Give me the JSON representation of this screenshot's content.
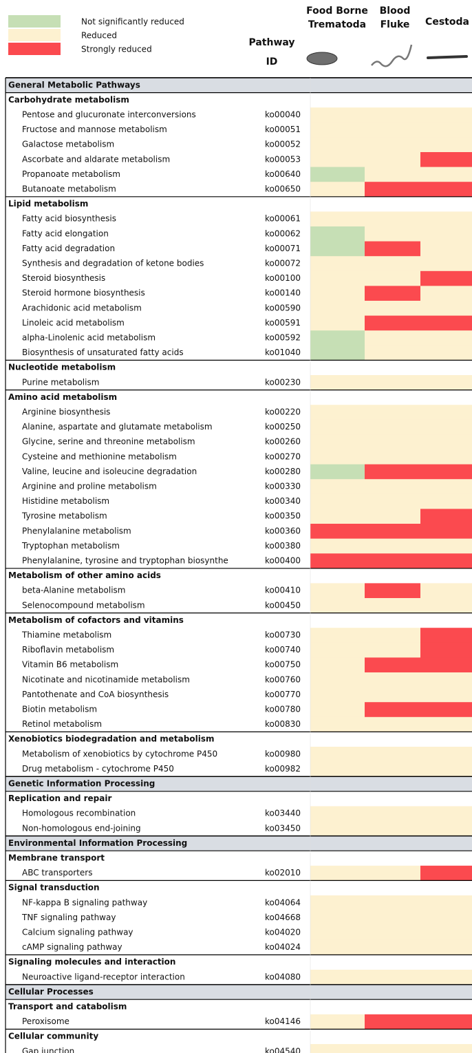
{
  "legend": [
    {
      "label": "Not significantly reduced",
      "color": "#c6dfb5"
    },
    {
      "label": "Reduced",
      "color": "#fdf1d0"
    },
    {
      "label": "Strongly reduced",
      "color": "#fb4a4f"
    }
  ],
  "header": {
    "pathway_id": [
      "Pathway",
      "ID"
    ],
    "organisms": [
      [
        "Food Borne",
        "Trematoda"
      ],
      [
        "Blood",
        "Fluke"
      ],
      [
        "Cestoda"
      ]
    ]
  },
  "sections": [
    {
      "title": "General Metabolic Pathways",
      "groups": [
        {
          "title": "Carbohydrate metabolism",
          "rows": [
            {
              "name": "Pentose and glucuronate interconversions",
              "id": "ko00040",
              "status": [
                1,
                1,
                1
              ]
            },
            {
              "name": "Fructose and mannose metabolism",
              "id": "ko00051",
              "status": [
                1,
                1,
                1
              ]
            },
            {
              "name": "Galactose metabolism",
              "id": "ko00052",
              "status": [
                1,
                1,
                1
              ]
            },
            {
              "name": "Ascorbate and aldarate metabolism",
              "id": "ko00053",
              "status": [
                1,
                1,
                2
              ]
            },
            {
              "name": "Propanoate metabolism",
              "id": "ko00640",
              "status": [
                0,
                1,
                1
              ]
            },
            {
              "name": "Butanoate metabolism",
              "id": "ko00650",
              "status": [
                1,
                2,
                2
              ]
            }
          ]
        },
        {
          "title": "Lipid metabolism",
          "rows": [
            {
              "name": "Fatty acid biosynthesis",
              "id": "ko00061",
              "status": [
                1,
                1,
                1
              ]
            },
            {
              "name": "Fatty acid elongation",
              "id": "ko00062",
              "status": [
                0,
                1,
                1
              ]
            },
            {
              "name": "Fatty acid degradation",
              "id": "ko00071",
              "status": [
                0,
                2,
                1
              ]
            },
            {
              "name": "Synthesis and degradation of ketone bodies",
              "id": "ko00072",
              "status": [
                1,
                1,
                1
              ]
            },
            {
              "name": "Steroid biosynthesis",
              "id": "ko00100",
              "status": [
                1,
                1,
                2
              ]
            },
            {
              "name": "Steroid hormone biosynthesis",
              "id": "ko00140",
              "status": [
                1,
                2,
                1
              ]
            },
            {
              "name": "Arachidonic acid metabolism",
              "id": "ko00590",
              "status": [
                1,
                1,
                1
              ]
            },
            {
              "name": "Linoleic acid metabolism",
              "id": "ko00591",
              "status": [
                1,
                2,
                2
              ]
            },
            {
              "name": "alpha-Linolenic acid metabolism",
              "id": "ko00592",
              "status": [
                0,
                1,
                1
              ]
            },
            {
              "name": "Biosynthesis of unsaturated fatty acids",
              "id": "ko01040",
              "status": [
                0,
                1,
                1
              ]
            }
          ]
        },
        {
          "title": "Nucleotide metabolism",
          "rows": [
            {
              "name": "Purine metabolism",
              "id": "ko00230",
              "status": [
                1,
                1,
                1
              ]
            }
          ]
        },
        {
          "title": "Amino acid metabolism",
          "rows": [
            {
              "name": "Arginine biosynthesis",
              "id": "ko00220",
              "status": [
                1,
                1,
                1
              ]
            },
            {
              "name": "Alanine, aspartate and glutamate metabolism",
              "id": "ko00250",
              "status": [
                1,
                1,
                1
              ]
            },
            {
              "name": "Glycine, serine and threonine metabolism",
              "id": "ko00260",
              "status": [
                1,
                1,
                1
              ]
            },
            {
              "name": "Cysteine and methionine metabolism",
              "id": "ko00270",
              "status": [
                1,
                1,
                1
              ]
            },
            {
              "name": "Valine, leucine and isoleucine degradation",
              "id": "ko00280",
              "status": [
                0,
                2,
                2
              ]
            },
            {
              "name": "Arginine and proline metabolism",
              "id": "ko00330",
              "status": [
                1,
                1,
                1
              ]
            },
            {
              "name": "Histidine metabolism",
              "id": "ko00340",
              "status": [
                1,
                1,
                1
              ]
            },
            {
              "name": "Tyrosine metabolism",
              "id": "ko00350",
              "status": [
                1,
                1,
                2
              ]
            },
            {
              "name": "Phenylalanine metabolism",
              "id": "ko00360",
              "status": [
                2,
                2,
                2
              ]
            },
            {
              "name": "Tryptophan metabolism",
              "id": "ko00380",
              "status": [
                1,
                1,
                1
              ]
            },
            {
              "name": "Phenylalanine, tyrosine and tryptophan biosynthe",
              "id": "ko00400",
              "status": [
                2,
                2,
                2
              ]
            }
          ]
        },
        {
          "title": "Metabolism of other amino acids",
          "rows": [
            {
              "name": "beta-Alanine metabolism",
              "id": "ko00410",
              "status": [
                1,
                2,
                1
              ]
            },
            {
              "name": "Selenocompound metabolism",
              "id": "ko00450",
              "status": [
                1,
                1,
                1
              ]
            }
          ]
        },
        {
          "title": "Metabolism of cofactors and vitamins",
          "rows": [
            {
              "name": "Thiamine metabolism",
              "id": "ko00730",
              "status": [
                1,
                1,
                2
              ]
            },
            {
              "name": "Riboflavin metabolism",
              "id": "ko00740",
              "status": [
                1,
                1,
                2
              ]
            },
            {
              "name": "Vitamin B6 metabolism",
              "id": "ko00750",
              "status": [
                1,
                2,
                2
              ]
            },
            {
              "name": "Nicotinate and nicotinamide metabolism",
              "id": "ko00760",
              "status": [
                1,
                1,
                1
              ]
            },
            {
              "name": "Pantothenate and CoA biosynthesis",
              "id": "ko00770",
              "status": [
                1,
                1,
                1
              ]
            },
            {
              "name": "Biotin metabolism",
              "id": "ko00780",
              "status": [
                1,
                2,
                2
              ]
            },
            {
              "name": "Retinol metabolism",
              "id": "ko00830",
              "status": [
                1,
                1,
                1
              ]
            }
          ]
        },
        {
          "title": "Xenobiotics biodegradation and metabolism",
          "rows": [
            {
              "name": "Metabolism of xenobiotics by cytochrome P450",
              "id": "ko00980",
              "status": [
                1,
                1,
                1
              ]
            },
            {
              "name": "Drug metabolism - cytochrome P450",
              "id": "ko00982",
              "status": [
                1,
                1,
                1
              ]
            }
          ]
        }
      ]
    },
    {
      "title": "Genetic Information Processing",
      "groups": [
        {
          "title": "Replication and repair",
          "rows": [
            {
              "name": "Homologous recombination",
              "id": "ko03440",
              "status": [
                1,
                1,
                1
              ]
            },
            {
              "name": "Non-homologous end-joining",
              "id": "ko03450",
              "status": [
                1,
                1,
                1
              ]
            }
          ]
        }
      ]
    },
    {
      "title": "Environmental Information Processing",
      "groups": [
        {
          "title": "Membrane transport",
          "rows": [
            {
              "name": "ABC transporters",
              "id": "ko02010",
              "status": [
                1,
                1,
                2
              ]
            }
          ]
        },
        {
          "title": "Signal transduction",
          "rows": [
            {
              "name": "NF-kappa B signaling pathway",
              "id": "ko04064",
              "status": [
                1,
                1,
                1
              ]
            },
            {
              "name": "TNF signaling pathway",
              "id": "ko04668",
              "status": [
                1,
                1,
                1
              ]
            },
            {
              "name": "Calcium signaling pathway",
              "id": "ko04020",
              "status": [
                1,
                1,
                1
              ]
            },
            {
              "name": "cAMP signaling pathway",
              "id": "ko04024",
              "status": [
                1,
                1,
                1
              ]
            }
          ]
        },
        {
          "title": "Signaling molecules and interaction",
          "rows": [
            {
              "name": "Neuroactive ligand-receptor interaction",
              "id": "ko04080",
              "status": [
                1,
                1,
                1
              ]
            }
          ]
        }
      ]
    },
    {
      "title": "Cellular Processes",
      "groups": [
        {
          "title": "Transport and catabolism",
          "rows": [
            {
              "name": "Peroxisome",
              "id": "ko04146",
              "status": [
                1,
                2,
                2
              ]
            }
          ]
        },
        {
          "title": "Cellular community",
          "rows": [
            {
              "name": "Gap junction",
              "id": "ko04540",
              "status": [
                1,
                1,
                1
              ]
            }
          ]
        }
      ]
    }
  ]
}
